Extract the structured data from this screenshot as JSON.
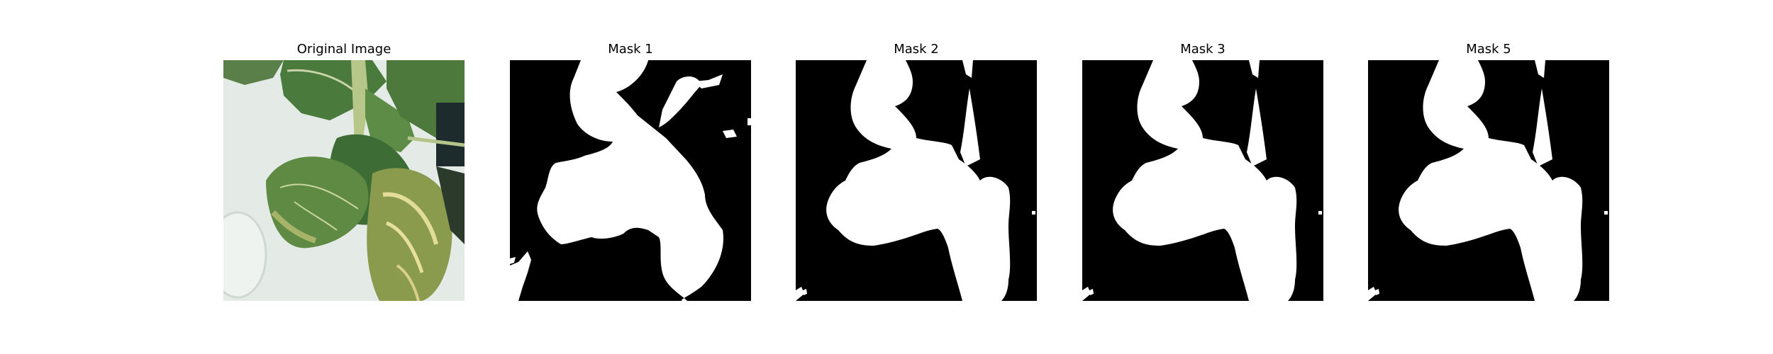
{
  "figure": {
    "panels": [
      {
        "title": "Original Image"
      },
      {
        "title": "Mask 1"
      },
      {
        "title": "Mask 2"
      },
      {
        "title": "Mask 3"
      },
      {
        "title": "Mask 5"
      }
    ]
  },
  "colors": {
    "background": "#ffffff",
    "mask_foreground": "#ffffff",
    "mask_background": "#000000",
    "photo_tray": "#dfe7e2",
    "photo_leaf_dark": "#3f6a34",
    "photo_leaf_mid": "#5b8447",
    "photo_leaf_yellow": "#b9b968"
  }
}
